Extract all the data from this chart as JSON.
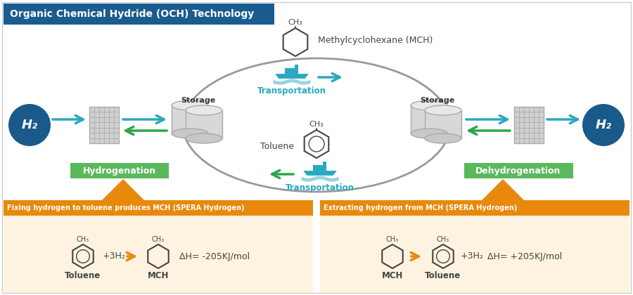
{
  "title": "Organic Chemical Hydride (OCH) Technology",
  "title_bg": "#1a5c8f",
  "title_color": "white",
  "orange_color": "#e8890c",
  "green_color": "#5cb85c",
  "blue_circle_color": "#1a5a8a",
  "teal_color": "#29a8c0",
  "green_arrow_color": "#2da44e",
  "bg_color": "white",
  "bottom_bg_color": "#fdf3e0",
  "gray_line_color": "#999999",
  "molecule_color": "#444444",
  "left_panel_title": "Fixing hydrogen to toluene produces MCH (SPERA Hydrogen)",
  "right_panel_title": "Extracting hydrogen from MCH (SPERA Hydrogen)",
  "hydrogenation_label": "Hydrogenation",
  "dehydrogenation_label": "Dehydrogenation",
  "storage_label": "Storage",
  "transportation_label": "Transportation",
  "mch_label": "Methylcyclohexane (MCH)",
  "toluene_label": "Toluene",
  "h2_label": "H₂"
}
